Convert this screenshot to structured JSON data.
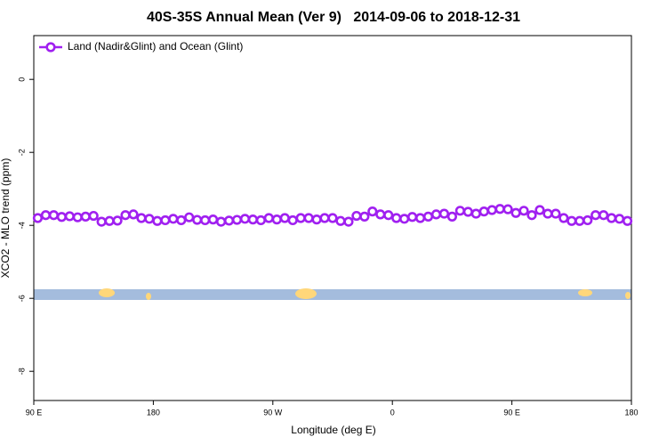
{
  "chart_data": {
    "type": "line",
    "title": "40S-35S Annual Mean (Ver 9)   2014-09-06 to 2018-12-31",
    "x_label": "Longitude (deg E)",
    "y_label": "XCO2 - MLO trend (ppm)",
    "x": [
      93,
      99,
      105,
      111,
      117,
      123,
      129,
      135,
      141,
      147,
      153,
      159,
      165,
      171,
      177,
      183,
      189,
      195,
      201,
      207,
      213,
      219,
      225,
      231,
      237,
      243,
      249,
      255,
      261,
      267,
      273,
      279,
      285,
      291,
      297,
      303,
      309,
      315,
      321,
      327,
      333,
      339,
      345,
      351,
      357,
      363,
      369,
      375,
      381,
      387,
      393,
      399,
      405,
      411,
      417,
      423,
      429,
      435,
      441,
      447,
      453,
      459,
      465,
      471,
      477,
      483,
      489,
      495,
      501,
      507,
      513,
      519,
      525,
      531,
      537
    ],
    "series": [
      {
        "name": "Land (Nadir&Glint) and Ocean (Glint)",
        "color": "#a020f0",
        "values": [
          -3.8,
          -3.72,
          -3.72,
          -3.77,
          -3.75,
          -3.78,
          -3.76,
          -3.74,
          -3.9,
          -3.88,
          -3.87,
          -3.72,
          -3.7,
          -3.8,
          -3.82,
          -3.88,
          -3.86,
          -3.82,
          -3.86,
          -3.78,
          -3.85,
          -3.86,
          -3.84,
          -3.9,
          -3.87,
          -3.85,
          -3.82,
          -3.84,
          -3.86,
          -3.8,
          -3.84,
          -3.8,
          -3.86,
          -3.8,
          -3.8,
          -3.84,
          -3.8,
          -3.8,
          -3.88,
          -3.9,
          -3.74,
          -3.76,
          -3.62,
          -3.7,
          -3.72,
          -3.8,
          -3.82,
          -3.77,
          -3.8,
          -3.76,
          -3.7,
          -3.68,
          -3.76,
          -3.6,
          -3.63,
          -3.68,
          -3.62,
          -3.58,
          -3.55,
          -3.56,
          -3.66,
          -3.6,
          -3.72,
          -3.58,
          -3.68,
          -3.68,
          -3.8,
          -3.88,
          -3.88,
          -3.86,
          -3.72,
          -3.72,
          -3.8,
          -3.82,
          -3.88
        ]
      }
    ],
    "xlim": [
      90,
      540
    ],
    "xticks": [
      {
        "value": 90,
        "label": "90 E"
      },
      180,
      {
        "value": 270,
        "label": "90 W"
      },
      {
        "value": 360,
        "label": "0"
      },
      {
        "value": 450,
        "label": "90 E"
      },
      {
        "value": 540,
        "label": "180"
      }
    ],
    "ylim": [
      -8.8,
      1.2
    ],
    "yticks": [
      0,
      -2,
      -4,
      -6,
      -8
    ],
    "legend": "top-left"
  }
}
